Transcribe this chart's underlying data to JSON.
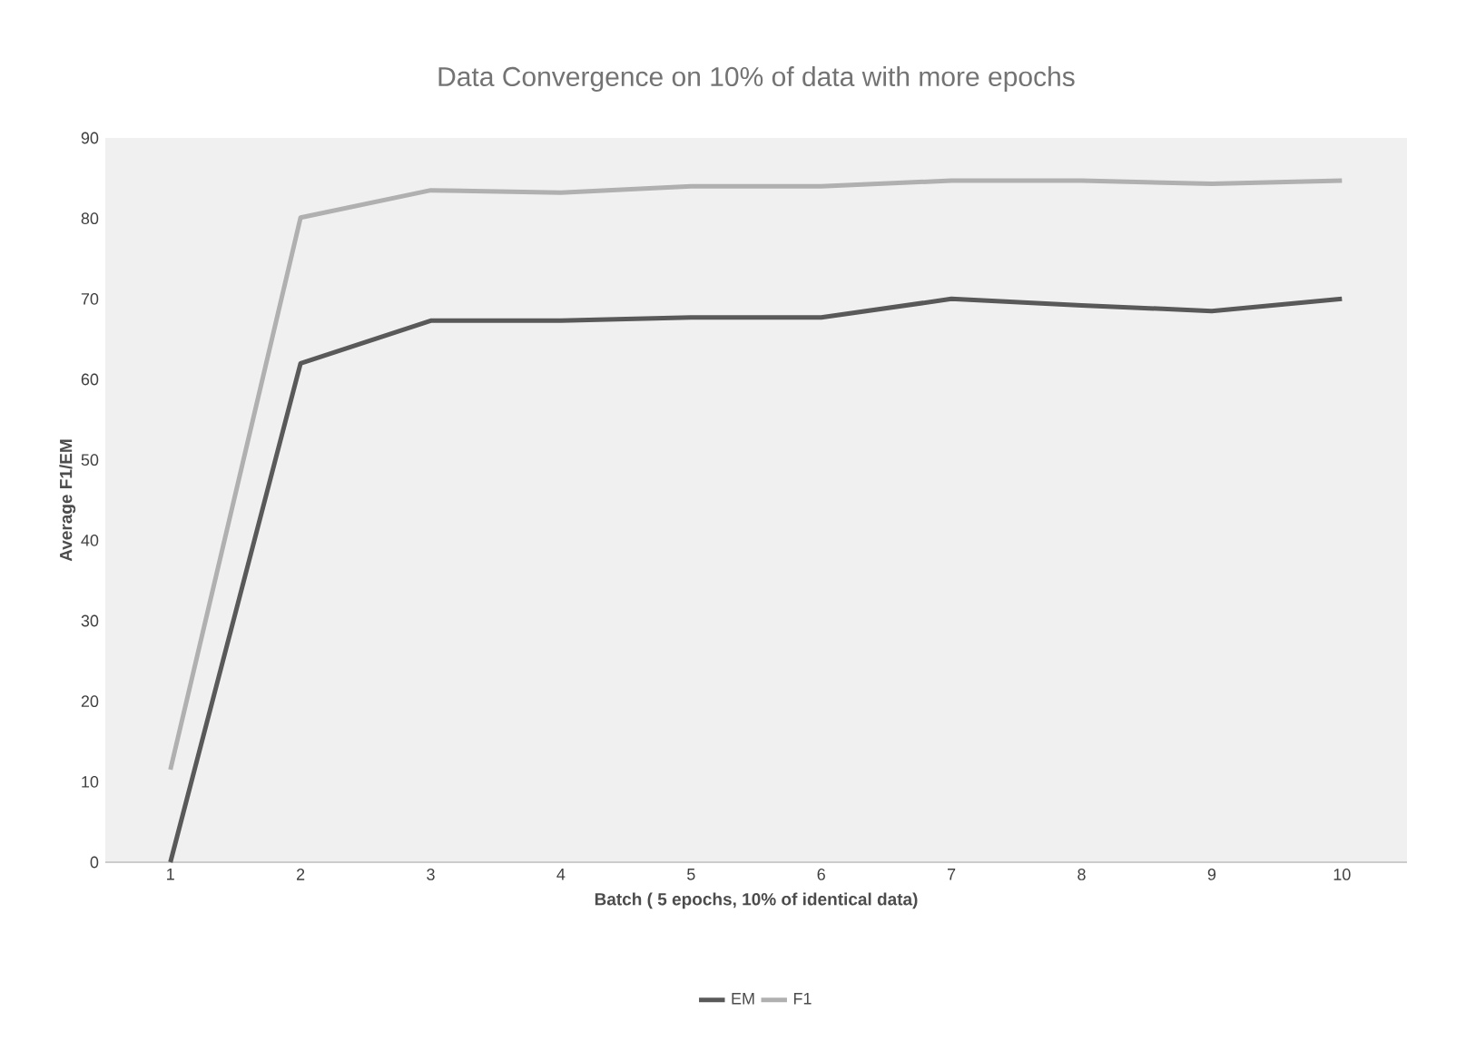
{
  "chart_data": {
    "type": "line",
    "title": "Data Convergence on 10% of data with more epochs",
    "xlabel": "Batch ( 5 epochs, 10% of identical data)",
    "ylabel": "Average F1/EM",
    "categories": [
      "1",
      "2",
      "3",
      "4",
      "5",
      "6",
      "7",
      "8",
      "9",
      "10"
    ],
    "series": [
      {
        "name": "EM",
        "color": "#595959",
        "values": [
          0,
          62,
          67.3,
          67.3,
          67.7,
          67.7,
          70,
          69.2,
          68.5,
          70
        ]
      },
      {
        "name": "F1",
        "color": "#b0b0b0",
        "values": [
          11.5,
          80.1,
          83.5,
          83.2,
          84,
          84,
          84.7,
          84.7,
          84.3,
          84.7
        ]
      }
    ],
    "ylim": [
      0,
      90
    ],
    "yticks": [
      0,
      10,
      20,
      30,
      40,
      50,
      60,
      70,
      80,
      90
    ],
    "legend": "bottom",
    "marker": "none",
    "line_style": "solid"
  }
}
